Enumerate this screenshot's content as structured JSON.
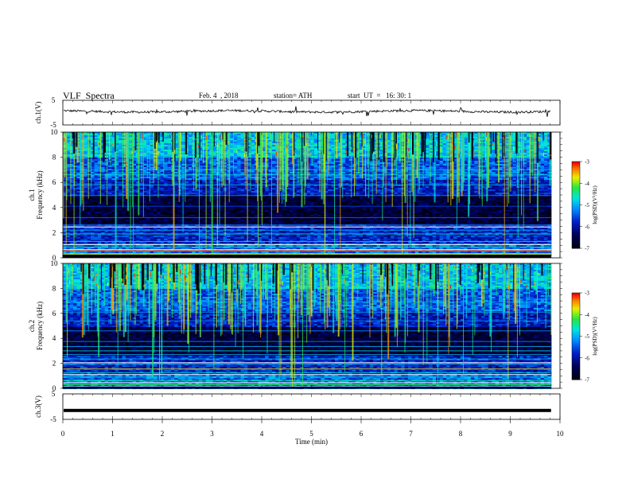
{
  "header": {
    "title": "VLF  Spectra",
    "date": "Feb. 4  , 2018",
    "station": "station= ATH",
    "start": "start  UT  =   16: 30: 1"
  },
  "chart_data": [
    {
      "type": "line",
      "ylabel": "ch.1(V)",
      "yticks": [
        "5",
        "-5"
      ],
      "ylim": [
        -5,
        5
      ],
      "baseline": 0.5,
      "description_of_data": "noisy waveform near 0 V"
    },
    {
      "type": "heatmap",
      "ylabel_line1": "ch.1",
      "ylabel_line2": "Frequency  (kHz)",
      "yticks": [
        "0",
        "2",
        "4",
        "6",
        "8",
        "10"
      ],
      "ylim": [
        0,
        10
      ],
      "xlim": [
        0,
        10
      ],
      "colorbar": {
        "label": "log(PSD)(V²/Hz)",
        "ticks": [
          "-3",
          "-4",
          "-5",
          "-6",
          "-7"
        ],
        "range": [
          -7,
          -3
        ]
      },
      "colors": {
        "low": "#000033",
        "mid": "#00cc88",
        "high": "#ff2000"
      }
    },
    {
      "type": "heatmap",
      "ylabel_line1": "ch.2",
      "ylabel_line2": "Frequency  (kHz)",
      "yticks": [
        "0",
        "2",
        "4",
        "6",
        "8",
        "10"
      ],
      "ylim": [
        0,
        10
      ],
      "xlim": [
        0,
        10
      ],
      "colorbar": {
        "label": "log(PSD)(V²/Hz)",
        "ticks": [
          "-3",
          "-4",
          "-5",
          "-6",
          "-7"
        ],
        "range": [
          -7,
          -3
        ]
      }
    },
    {
      "type": "line",
      "ylabel": "ch.3(V)",
      "yticks": [
        "5",
        "-5"
      ],
      "ylim": [
        -5,
        5
      ],
      "baseline": -1.5
    }
  ],
  "xaxis": {
    "label": "Time  (min)",
    "ticks": [
      "0",
      "1",
      "2",
      "3",
      "4",
      "5",
      "6",
      "7",
      "8",
      "9",
      "10"
    ],
    "xlim": [
      0,
      10
    ],
    "data_end": 9.82
  }
}
